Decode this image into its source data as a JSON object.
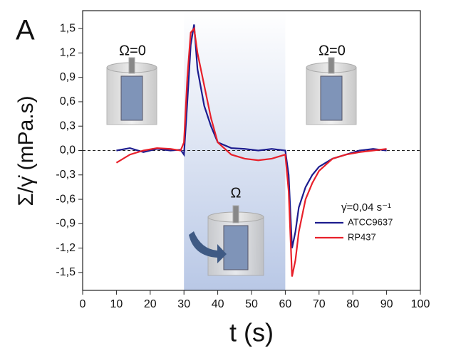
{
  "chart_data": {
    "type": "line",
    "panel_label": "A",
    "x_label": "t (s)",
    "y_label": "Σ/γ̇ (mPa.s)",
    "annotations": [
      "Ω=0",
      "Ω=0",
      "Ω"
    ],
    "legend_title": "γ̇=0,04 s⁻¹",
    "xlim": [
      0,
      100
    ],
    "xticks": [
      0,
      10,
      20,
      30,
      40,
      50,
      60,
      70,
      80,
      90,
      100
    ],
    "ylim": [
      -1.72,
      1.72
    ],
    "yticks": [
      {
        "value": 1.5,
        "label": "1,5"
      },
      {
        "value": 1.2,
        "label": "1,2"
      },
      {
        "value": 0.9,
        "label": "0,9"
      },
      {
        "value": 0.6,
        "label": "0,6"
      },
      {
        "value": 0.3,
        "label": "0,3"
      },
      {
        "value": 0.0,
        "label": "0,0"
      },
      {
        "value": -0.3,
        "label": "-0,3"
      },
      {
        "value": -0.6,
        "label": "-0,6"
      },
      {
        "value": -0.9,
        "label": "-0,9"
      },
      {
        "value": -1.2,
        "label": "-1,2"
      },
      {
        "value": -1.5,
        "label": "-1,5"
      }
    ],
    "shaded_region": [
      30,
      60
    ],
    "zero_line": true,
    "x": [
      10,
      14,
      18,
      22,
      26,
      29,
      30,
      31,
      32,
      33,
      34,
      36,
      38,
      40,
      44,
      48,
      52,
      56,
      60,
      61,
      62,
      63,
      64,
      66,
      68,
      70,
      74,
      78,
      82,
      86,
      90
    ],
    "series": [
      {
        "name": "ATCC9637",
        "color": "#1c1c8e",
        "values": [
          0.0,
          0.03,
          -0.02,
          0.02,
          0.0,
          0.01,
          -0.05,
          0.6,
          1.3,
          1.55,
          1.0,
          0.55,
          0.3,
          0.1,
          0.03,
          0.02,
          0.0,
          0.02,
          0.0,
          -0.3,
          -1.2,
          -1.0,
          -0.7,
          -0.45,
          -0.3,
          -0.2,
          -0.1,
          -0.05,
          0.0,
          0.02,
          0.0
        ]
      },
      {
        "name": "RP437",
        "color": "#e8202a",
        "values": [
          -0.15,
          -0.05,
          0.0,
          0.03,
          0.02,
          0.0,
          0.1,
          0.9,
          1.45,
          1.5,
          1.2,
          0.8,
          0.4,
          0.1,
          -0.05,
          -0.1,
          -0.12,
          -0.1,
          -0.05,
          -0.5,
          -1.55,
          -1.35,
          -1.0,
          -0.6,
          -0.4,
          -0.25,
          -0.1,
          -0.05,
          -0.02,
          0.0,
          0.02
        ]
      }
    ]
  }
}
